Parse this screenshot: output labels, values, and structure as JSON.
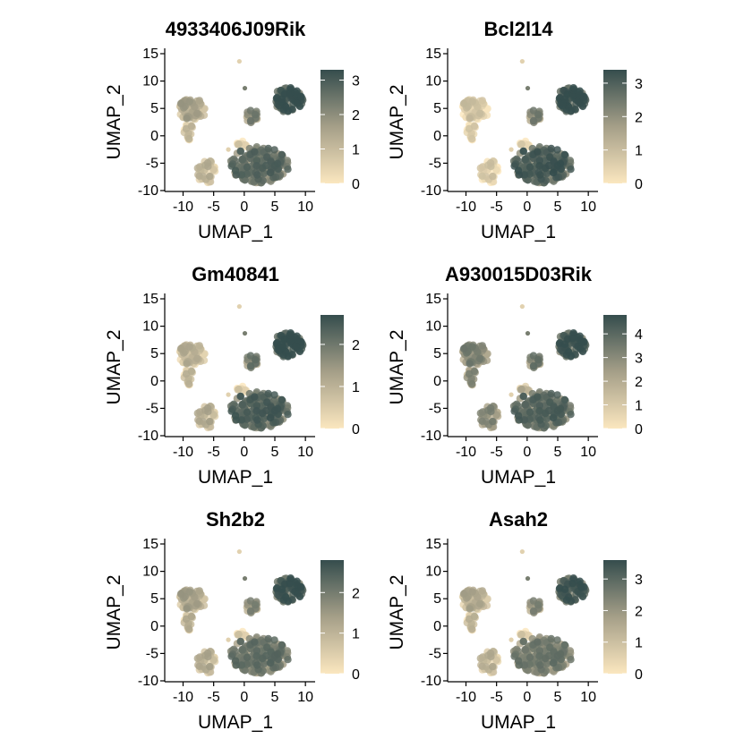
{
  "colors": {
    "low": "#fbe7bf",
    "high": "#354d4d",
    "mid": "#a59f88"
  },
  "chart_data": [
    {
      "type": "scatter",
      "title": "4933406J09Rik",
      "xlabel": "UMAP_1",
      "ylabel": "UMAP_2",
      "xticks": [
        "-10",
        "-5",
        "0",
        "5",
        "10"
      ],
      "yticks": [
        "-10",
        "-5",
        "0",
        "5",
        "10",
        "15"
      ],
      "xlim": [
        -13,
        11
      ],
      "ylim": [
        -10,
        15
      ],
      "colorbar_ticks": [
        "0",
        "1",
        "2",
        "3"
      ],
      "colorbar_range": [
        0,
        3.3
      ],
      "cluster_levels": {
        "A": 0.35,
        "B": 0.18,
        "C": 0.25,
        "D": 0.7,
        "E": 0.88,
        "F": 0.55,
        "G": 0.1
      }
    },
    {
      "type": "scatter",
      "title": "Bcl2l14",
      "xlabel": "UMAP_1",
      "ylabel": "UMAP_2",
      "xticks": [
        "-10",
        "-5",
        "0",
        "5",
        "10"
      ],
      "yticks": [
        "-10",
        "-5",
        "0",
        "5",
        "10",
        "15"
      ],
      "xlim": [
        -13,
        11
      ],
      "ylim": [
        -10,
        15
      ],
      "colorbar_ticks": [
        "0",
        "1",
        "2",
        "3"
      ],
      "colorbar_range": [
        0,
        3.4
      ],
      "cluster_levels": {
        "A": 0.12,
        "B": 0.05,
        "C": 0.1,
        "D": 0.78,
        "E": 0.9,
        "F": 0.55,
        "G": 0.05
      }
    },
    {
      "type": "scatter",
      "title": "Gm40841",
      "xlabel": "UMAP_1",
      "ylabel": "UMAP_2",
      "xticks": [
        "-10",
        "-5",
        "0",
        "5",
        "10"
      ],
      "yticks": [
        "-10",
        "-5",
        "0",
        "5",
        "10",
        "15"
      ],
      "xlim": [
        -13,
        11
      ],
      "ylim": [
        -10,
        15
      ],
      "colorbar_ticks": [
        "0",
        "1",
        "2"
      ],
      "colorbar_range": [
        0,
        2.7
      ],
      "cluster_levels": {
        "A": 0.25,
        "B": 0.2,
        "C": 0.3,
        "D": 0.75,
        "E": 0.92,
        "F": 0.6,
        "G": 0.1
      }
    },
    {
      "type": "scatter",
      "title": "A930015D03Rik",
      "xlabel": "UMAP_1",
      "ylabel": "UMAP_2",
      "xticks": [
        "-10",
        "-5",
        "0",
        "5",
        "10"
      ],
      "yticks": [
        "-10",
        "-5",
        "0",
        "5",
        "10",
        "15"
      ],
      "xlim": [
        -13,
        11
      ],
      "ylim": [
        -10,
        15
      ],
      "colorbar_ticks": [
        "0",
        "1",
        "2",
        "3",
        "4"
      ],
      "colorbar_range": [
        0,
        4.8
      ],
      "cluster_levels": {
        "A": 0.55,
        "B": 0.5,
        "C": 0.52,
        "D": 0.72,
        "E": 0.85,
        "F": 0.6,
        "G": 0.3
      }
    },
    {
      "type": "scatter",
      "title": "Sh2b2",
      "xlabel": "UMAP_1",
      "ylabel": "UMAP_2",
      "xticks": [
        "-10",
        "-5",
        "0",
        "5",
        "10"
      ],
      "yticks": [
        "-10",
        "-5",
        "0",
        "5",
        "10",
        "15"
      ],
      "xlim": [
        -13,
        11
      ],
      "ylim": [
        -10,
        15
      ],
      "colorbar_ticks": [
        "0",
        "1",
        "2"
      ],
      "colorbar_range": [
        0,
        2.8
      ],
      "cluster_levels": {
        "A": 0.35,
        "B": 0.25,
        "C": 0.3,
        "D": 0.65,
        "E": 0.85,
        "F": 0.5,
        "G": 0.1
      }
    },
    {
      "type": "scatter",
      "title": "Asah2",
      "xlabel": "UMAP_1",
      "ylabel": "UMAP_2",
      "xticks": [
        "-10",
        "-5",
        "0",
        "5",
        "10"
      ],
      "yticks": [
        "-10",
        "-5",
        "0",
        "5",
        "10",
        "15"
      ],
      "xlim": [
        -13,
        11
      ],
      "ylim": [
        -10,
        15
      ],
      "colorbar_ticks": [
        "0",
        "1",
        "2",
        "3"
      ],
      "colorbar_range": [
        0,
        3.6
      ],
      "cluster_levels": {
        "A": 0.3,
        "B": 0.2,
        "C": 0.25,
        "D": 0.6,
        "E": 0.82,
        "F": 0.5,
        "G": 0.1
      }
    }
  ],
  "clusters": {
    "A": {
      "cx": -8.5,
      "cy": 4.8,
      "rx": 2.3,
      "ry": 2.0,
      "n": 70
    },
    "B": {
      "cx": -9.0,
      "cy": 0.8,
      "rx": 0.9,
      "ry": 1.6,
      "n": 18
    },
    "C": {
      "cx": -6.2,
      "cy": -6.5,
      "rx": 1.6,
      "ry": 2.2,
      "n": 34
    },
    "D": {
      "cx": 2.5,
      "cy": -5.3,
      "rx": 4.8,
      "ry": 3.3,
      "n": 230
    },
    "E": {
      "cx": 7.2,
      "cy": 6.6,
      "rx": 2.4,
      "ry": 2.3,
      "n": 95
    },
    "F": {
      "cx": 1.4,
      "cy": 3.6,
      "rx": 1.2,
      "ry": 1.2,
      "n": 24
    },
    "G": {
      "cx": -0.3,
      "cy": -1.6,
      "rx": 0.9,
      "ry": 0.8,
      "n": 8
    }
  },
  "outliers": [
    {
      "x": -0.8,
      "y": 13.6
    },
    {
      "x": 0.1,
      "y": 8.7
    },
    {
      "x": -2.6,
      "y": -2.5
    }
  ]
}
